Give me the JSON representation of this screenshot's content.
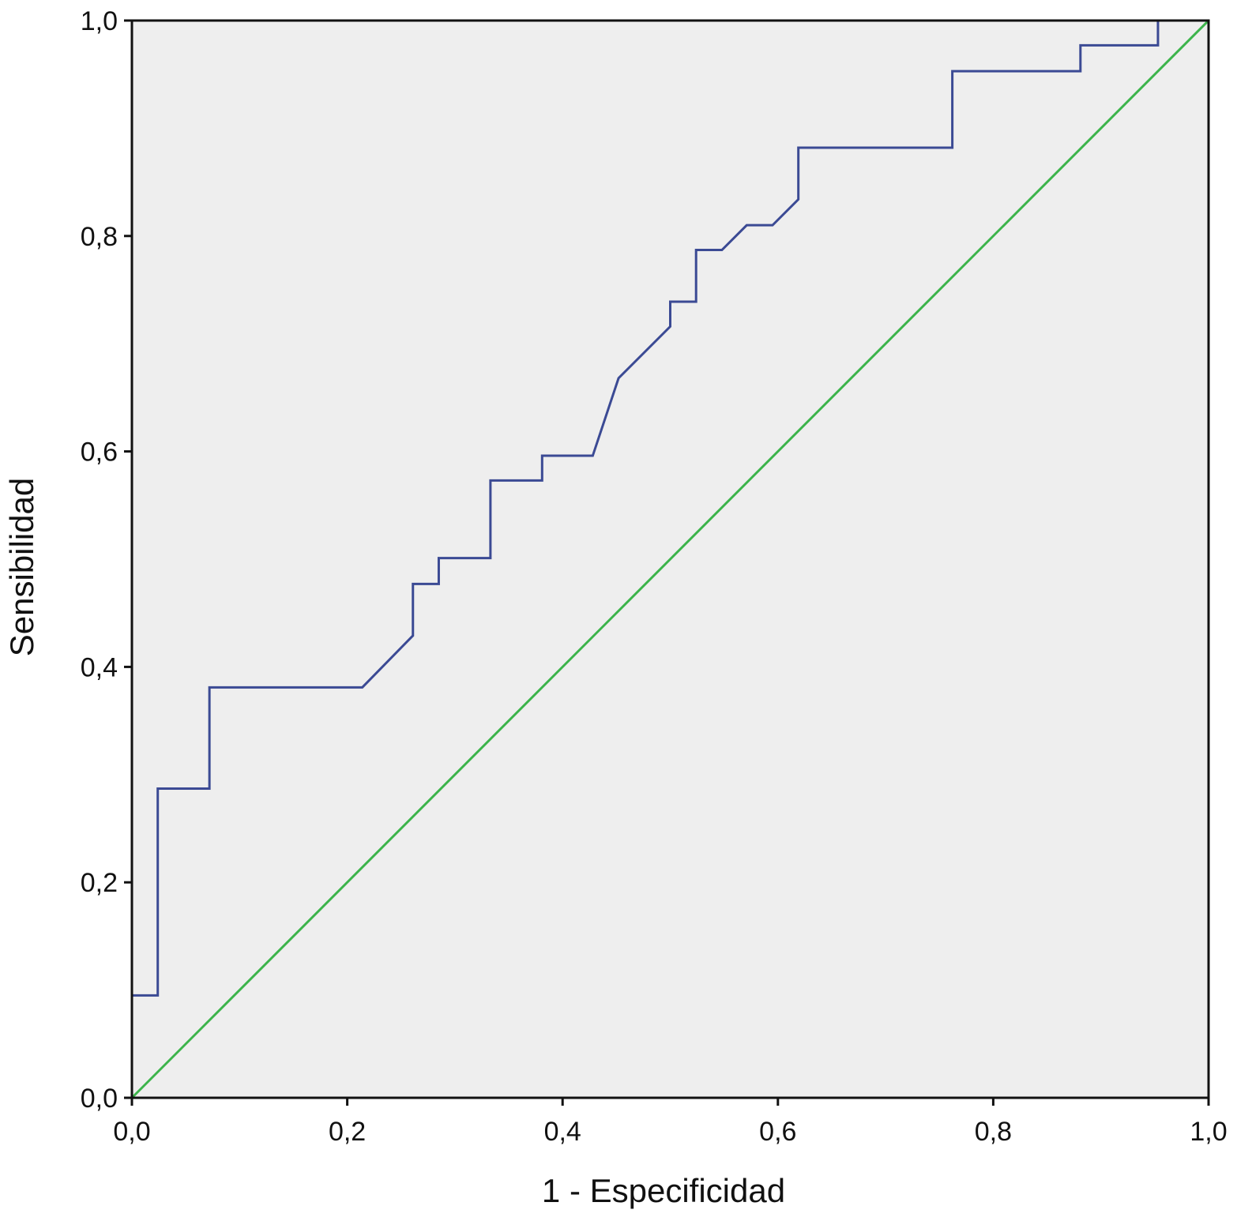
{
  "chart_data": {
    "type": "line",
    "title": "",
    "xlabel": "1 - Especificidad",
    "ylabel": "Sensibilidad",
    "xlim": [
      0,
      1
    ],
    "ylim": [
      0,
      1
    ],
    "grid": false,
    "x_ticks": [
      "0,0",
      "0,2",
      "0,4",
      "0,6",
      "0,8",
      "1,0"
    ],
    "y_ticks": [
      "0,0",
      "0,2",
      "0,4",
      "0,6",
      "0,8",
      "1,0"
    ],
    "tick_values": [
      0,
      0.2,
      0.4,
      0.6,
      0.8,
      1.0
    ],
    "series": [
      {
        "name": "ROC curve",
        "color": "#3b4a94",
        "x": [
          0,
          0,
          0.024,
          0.024,
          0.072,
          0.072,
          0.214,
          0.261,
          0.261,
          0.285,
          0.285,
          0.333,
          0.333,
          0.381,
          0.381,
          0.428,
          0.452,
          0.5,
          0.5,
          0.524,
          0.524,
          0.548,
          0.571,
          0.595,
          0.619,
          0.619,
          0.762,
          0.762,
          0.881,
          0.881,
          0.953,
          0.953,
          1.0
        ],
        "y": [
          0,
          0.095,
          0.095,
          0.287,
          0.287,
          0.381,
          0.381,
          0.429,
          0.477,
          0.477,
          0.501,
          0.501,
          0.573,
          0.573,
          0.596,
          0.596,
          0.668,
          0.716,
          0.739,
          0.739,
          0.787,
          0.787,
          0.81,
          0.81,
          0.834,
          0.882,
          0.882,
          0.953,
          0.953,
          0.977,
          0.977,
          1.0,
          1.0
        ]
      },
      {
        "name": "Reference line",
        "color": "#3cb44b",
        "x": [
          0,
          1
        ],
        "y": [
          0,
          1
        ]
      }
    ],
    "background": "#eeeeee"
  }
}
